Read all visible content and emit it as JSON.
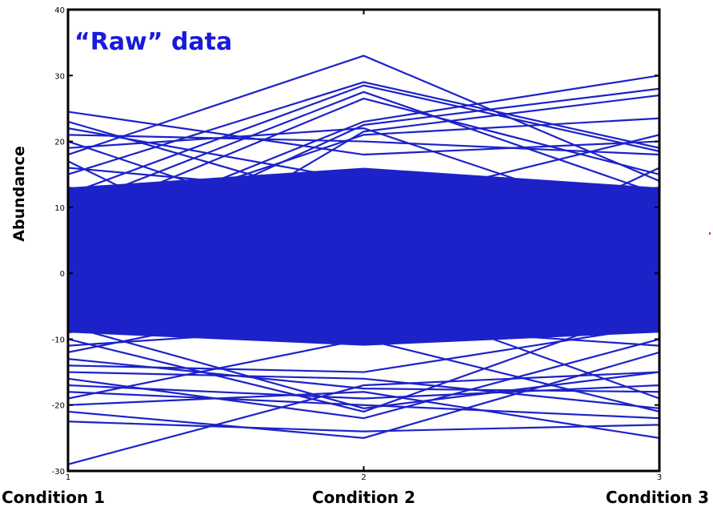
{
  "chart_data": {
    "type": "line",
    "title": "“Raw” data",
    "title_color": "#1a1adb",
    "xlabel": "",
    "ylabel": "Abundance",
    "x": [
      1,
      2,
      3
    ],
    "x_ticks": [
      "1",
      "2",
      "3"
    ],
    "categories": [
      "Condition 1",
      "Condition 2",
      "Condition 3"
    ],
    "ylim": [
      -30,
      40
    ],
    "y_ticks": [
      -30,
      -20,
      -10,
      0,
      10,
      20,
      30,
      40
    ],
    "grid": false,
    "line_color": "#1c22c8",
    "marker_color": "#e53030",
    "series": [
      {
        "values": [
          -29.0,
          -17.0,
          -15.0
        ]
      },
      {
        "values": [
          24.5,
          18.0,
          20.0
        ]
      },
      {
        "values": [
          23.0,
          10.0,
          21.0
        ]
      },
      {
        "values": [
          22.0,
          14.0,
          9.0
        ]
      },
      {
        "values": [
          20.0,
          5.0,
          10.0
        ]
      },
      {
        "values": [
          18.0,
          33.0,
          14.0
        ]
      },
      {
        "values": [
          15.0,
          29.0,
          19.0
        ]
      },
      {
        "values": [
          12.0,
          28.5,
          18.5
        ]
      },
      {
        "values": [
          10.0,
          27.5,
          12.0
        ]
      },
      {
        "values": [
          8.0,
          26.5,
          15.0
        ]
      },
      {
        "values": [
          5.0,
          23.0,
          30.0
        ]
      },
      {
        "values": [
          2.0,
          22.5,
          28.0
        ]
      },
      {
        "values": [
          6.0,
          21.0,
          23.5
        ]
      },
      {
        "values": [
          19.0,
          22.0,
          7.0
        ]
      },
      {
        "values": [
          -5.0,
          21.5,
          27.0
        ]
      },
      {
        "values": [
          17.0,
          -5.0,
          16.0
        ]
      },
      {
        "values": [
          16.0,
          12.0,
          -4.0
        ]
      },
      {
        "values": [
          21.0,
          20.0,
          18.0
        ]
      },
      {
        "values": [
          -22.5,
          -24.0,
          -23.0
        ]
      },
      {
        "values": [
          -21.0,
          -25.0,
          -12.0
        ]
      },
      {
        "values": [
          -20.0,
          -18.0,
          -25.0
        ]
      },
      {
        "values": [
          -18.0,
          -20.0,
          -22.0
        ]
      },
      {
        "values": [
          -17.0,
          -19.0,
          -17.0
        ]
      },
      {
        "values": [
          -16.0,
          -22.0,
          -10.0
        ]
      },
      {
        "values": [
          -19.0,
          -10.0,
          -21.0
        ]
      },
      {
        "values": [
          -15.0,
          -16.0,
          -20.5
        ]
      },
      {
        "values": [
          -13.0,
          -17.5,
          -18.0
        ]
      },
      {
        "values": [
          -10.0,
          -21.0,
          -5.0
        ]
      },
      {
        "values": [
          -8.0,
          -20.5,
          -15.0
        ]
      },
      {
        "values": [
          -12.0,
          -3.0,
          -19.0
        ]
      },
      {
        "values": [
          -14.0,
          -15.0,
          -8.0
        ]
      },
      {
        "values": [
          0.0,
          3.0,
          -2.0
        ]
      },
      {
        "values": [
          4.0,
          -2.0,
          5.0
        ]
      },
      {
        "values": [
          -3.0,
          6.0,
          1.0
        ]
      },
      {
        "values": [
          7.0,
          -6.0,
          -7.0
        ]
      },
      {
        "values": [
          -6.0,
          8.0,
          9.0
        ]
      },
      {
        "values": [
          11.0,
          4.0,
          -3.0
        ]
      },
      {
        "values": [
          -9.0,
          -4.0,
          6.0
        ]
      },
      {
        "values": [
          13.0,
          9.0,
          13.0
        ]
      },
      {
        "values": [
          -11.0,
          -8.0,
          -11.0
        ]
      }
    ]
  }
}
